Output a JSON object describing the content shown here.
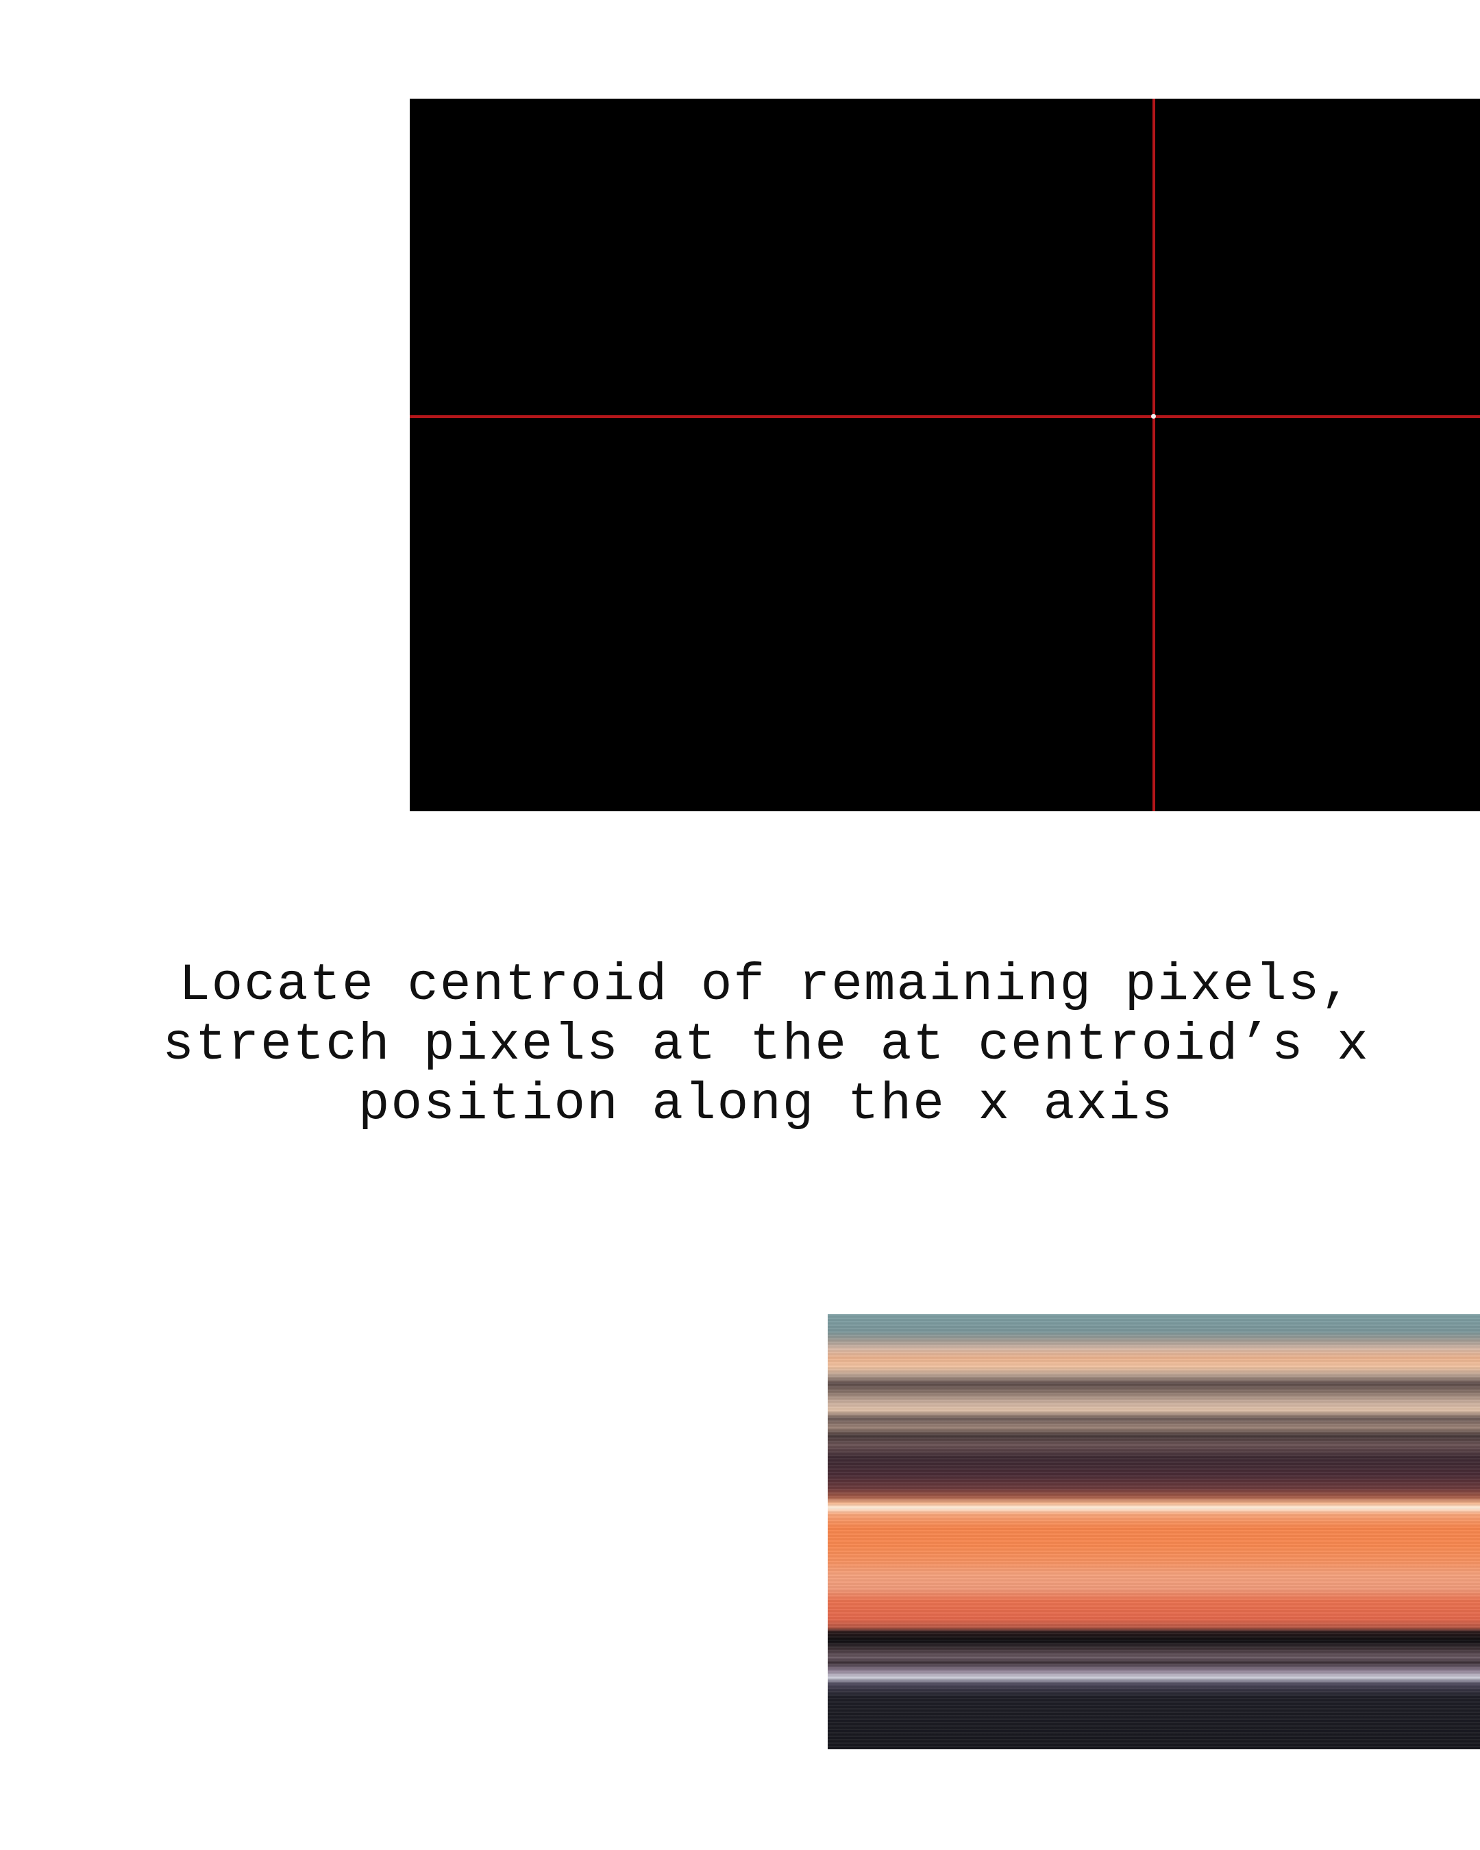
{
  "caption": {
    "line1": "Locate centroid of remaining pixels,",
    "line2": "stretch pixels at the at centroid’s x",
    "line3": "position along the x axis"
  },
  "colors": {
    "crosshair": "#b3161a",
    "panel_background": "#000000",
    "page_background": "#ffffff"
  }
}
